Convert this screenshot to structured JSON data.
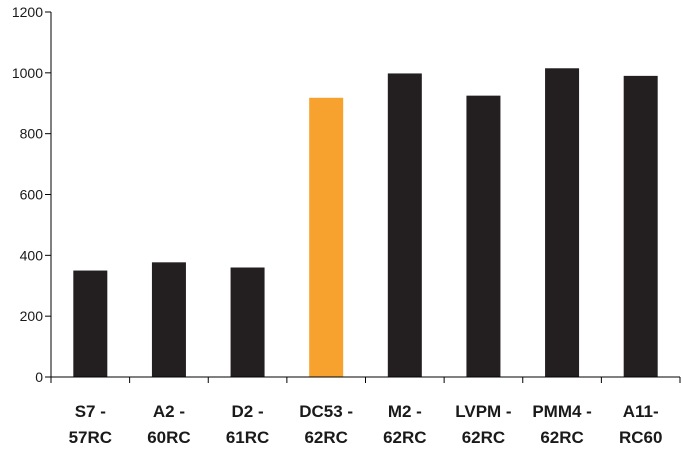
{
  "chart_data": {
    "type": "bar",
    "categories": [
      [
        "S7 -",
        "57RC"
      ],
      [
        "A2 -",
        "60RC"
      ],
      [
        "D2 -",
        "61RC"
      ],
      [
        "DC53 -",
        "62RC"
      ],
      [
        "M2 -",
        "62RC"
      ],
      [
        "LVPM -",
        "62RC"
      ],
      [
        "PMM4 -",
        "62RC"
      ],
      [
        "A11-",
        "RC60"
      ]
    ],
    "values": [
      350,
      377,
      360,
      918,
      998,
      925,
      1015,
      990
    ],
    "bar_colors": [
      "#231f20",
      "#231f20",
      "#231f20",
      "#f7a12e",
      "#231f20",
      "#231f20",
      "#231f20",
      "#231f20"
    ],
    "yticks": [
      0,
      200,
      400,
      600,
      800,
      1000,
      1200
    ],
    "ylim": [
      0,
      1200
    ],
    "grid": false,
    "legend": "none",
    "title": "",
    "xlabel": "",
    "ylabel": ""
  }
}
